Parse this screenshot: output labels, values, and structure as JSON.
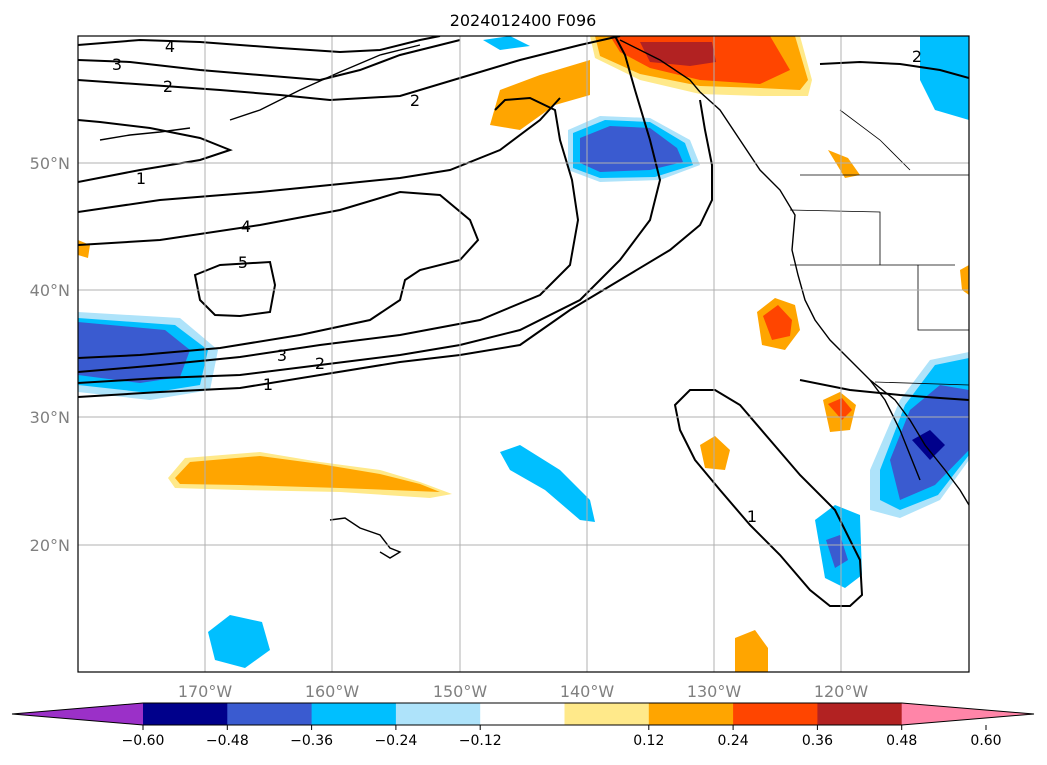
{
  "title": "2024012400 F096",
  "lat_labels": [
    "50°N",
    "40°N",
    "30°N",
    "20°N"
  ],
  "lon_labels": [
    "170°W",
    "160°W",
    "150°W",
    "140°W",
    "130°W",
    "120°W"
  ],
  "colorbar": {
    "ticks": [
      "−0.60",
      "−0.48",
      "−0.36",
      "−0.24",
      "−0.12",
      "0.12",
      "0.24",
      "0.36",
      "0.48",
      "0.60"
    ],
    "colors": [
      "#9b30c8",
      "#00008b",
      "#3a5bd0",
      "#00bfff",
      "#aee3fa",
      "#ffffff",
      "#ffe98a",
      "#ffa500",
      "#ff4500",
      "#b22222",
      "#ff85a8"
    ]
  },
  "contour_labels": [
    "4",
    "3",
    "2",
    "2",
    "1",
    "4",
    "5",
    "3",
    "2",
    "1",
    "1",
    "2"
  ],
  "grid": true
}
